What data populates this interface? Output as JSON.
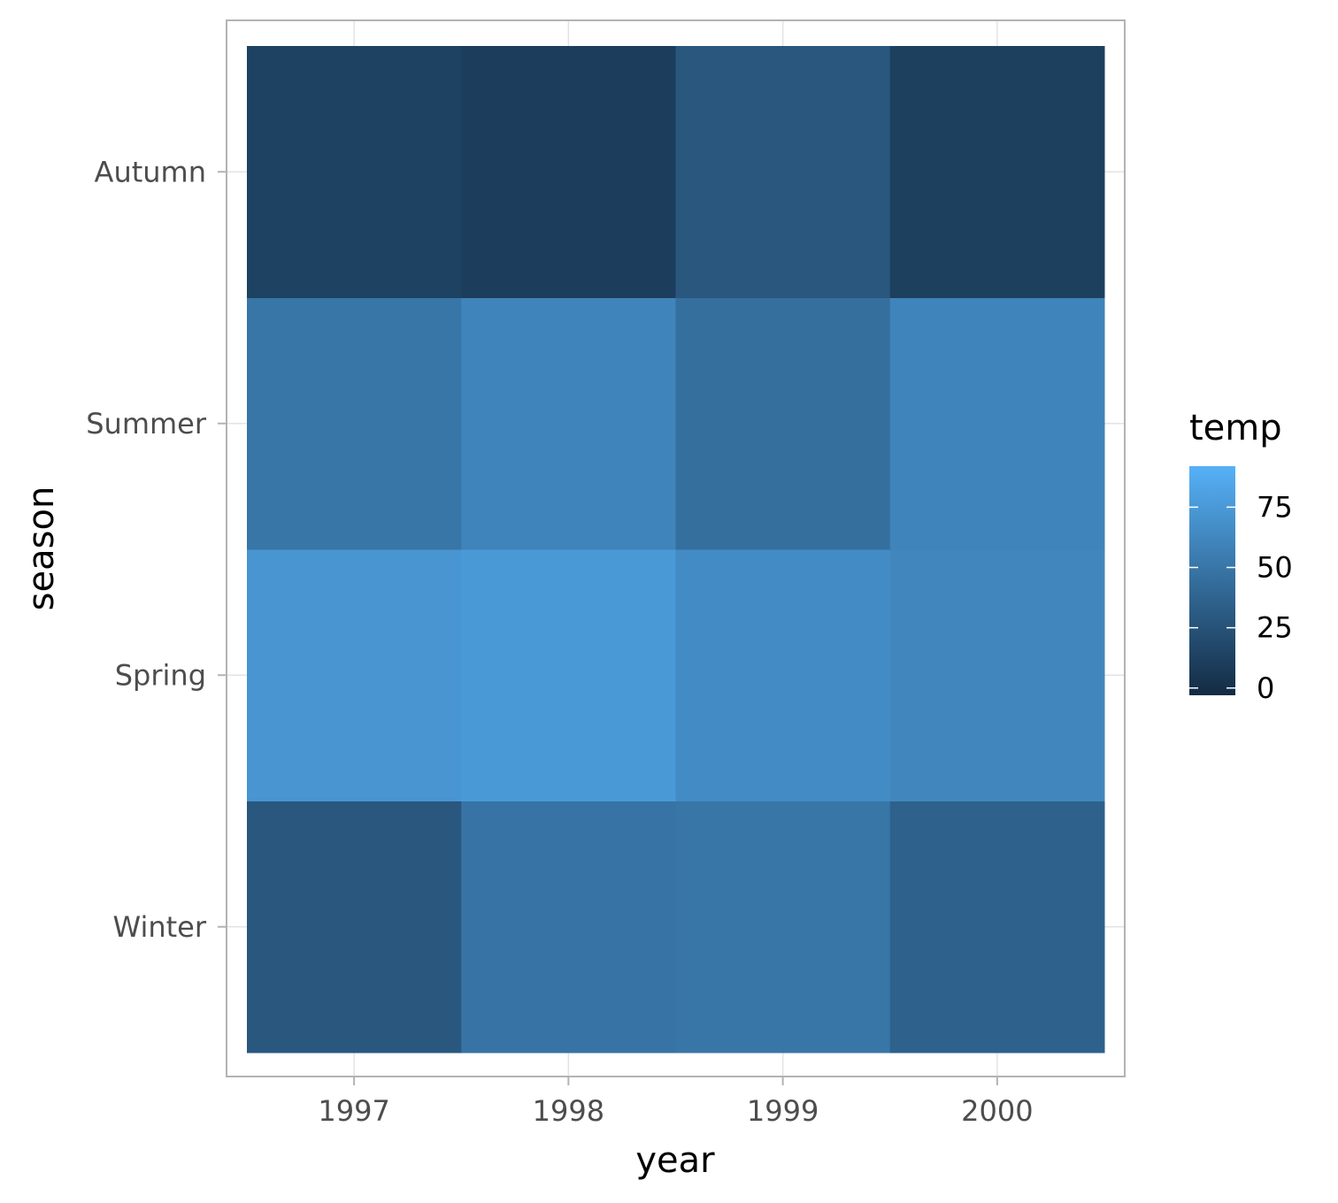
{
  "chart_data": {
    "type": "heatmap",
    "x": [
      "1997",
      "1998",
      "1999",
      "2000"
    ],
    "y": [
      "Winter",
      "Spring",
      "Summer",
      "Autumn"
    ],
    "xlabel": "year",
    "ylabel": "season",
    "values": [
      [
        28,
        48,
        50,
        35
      ],
      [
        72,
        75,
        65,
        62
      ],
      [
        50,
        60,
        45,
        60
      ],
      [
        13,
        10,
        28,
        12
      ]
    ],
    "legend": {
      "title": "temp",
      "ticks": [
        "0",
        "25",
        "50",
        "75"
      ],
      "range": [
        -3,
        92
      ],
      "low_color": "#132B43",
      "high_color": "#56B1F7",
      "placement": "right"
    },
    "grid": true
  }
}
